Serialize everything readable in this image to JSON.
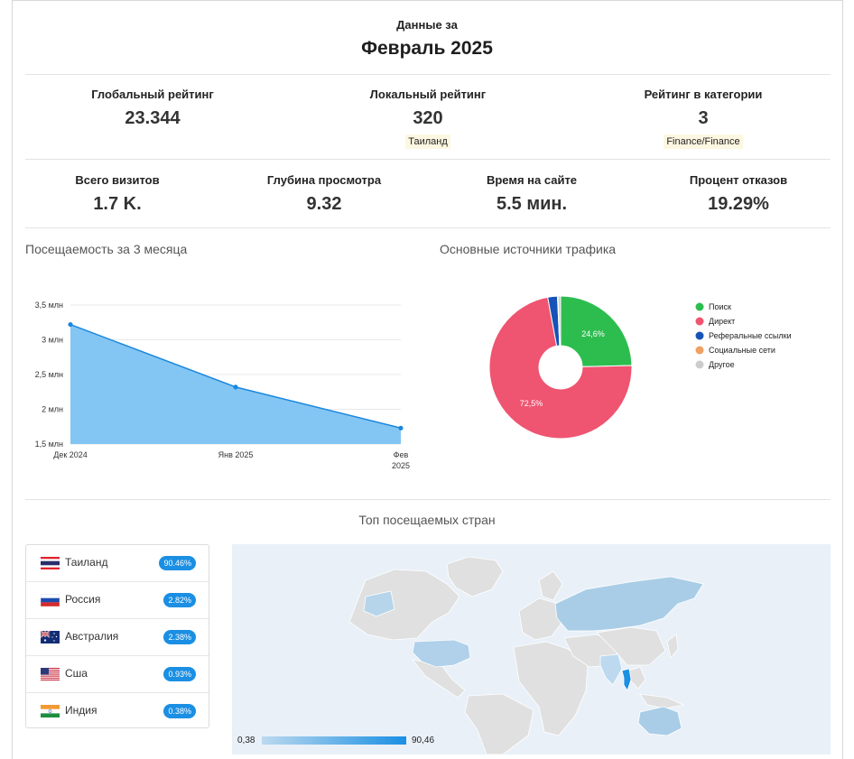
{
  "header": {
    "subtitle": "Данные за",
    "period": "Февраль 2025"
  },
  "ranks": [
    {
      "label": "Глобальный рейтинг",
      "value": "23.344",
      "tag": ""
    },
    {
      "label": "Локальный рейтинг",
      "value": "320",
      "tag": "Таиланд"
    },
    {
      "label": "Рейтинг в категории",
      "value": "3",
      "tag": "Finance/Finance"
    }
  ],
  "metrics": [
    {
      "label": "Всего визитов",
      "value": "1.7 K."
    },
    {
      "label": "Глубина просмотра",
      "value": "9.32"
    },
    {
      "label": "Время на сайте",
      "value": "5.5 мин."
    },
    {
      "label": "Процент отказов",
      "value": "19.29%"
    }
  ],
  "visits_title": "Посещаемость за 3 месяца",
  "traffic_title": "Основные источники трафика",
  "countries_title": "Топ посещаемых стран",
  "chart_data": [
    {
      "type": "area",
      "title": "Посещаемость за 3 месяца",
      "categories": [
        "Дек 2024",
        "Янв 2025",
        "Фев 2025"
      ],
      "values": [
        3.22,
        2.32,
        1.73
      ],
      "yticks": [
        "1,5 млн",
        "2 млн",
        "2,5 млн",
        "3 млн",
        "3,5 млн"
      ],
      "ylim": [
        1.5,
        3.5
      ],
      "grid": true,
      "color": "#7cc3f2",
      "line_color": "#1b87de"
    },
    {
      "type": "pie",
      "title": "Основные источники трафика",
      "slices": [
        {
          "name": "Поиск",
          "value": 24.6,
          "label": "24,6%",
          "color": "#2dbd4f"
        },
        {
          "name": "Директ",
          "value": 72.5,
          "label": "72,5%",
          "color": "#ef5470"
        },
        {
          "name": "Реферальные ссылки",
          "value": 2.2,
          "label": "",
          "color": "#1553b6"
        },
        {
          "name": "Социальные сети",
          "value": 0.1,
          "label": "",
          "color": "#f0a060"
        },
        {
          "name": "Другое",
          "value": 0.6,
          "label": "",
          "color": "#cccccc"
        }
      ],
      "legend": "right"
    }
  ],
  "countries": [
    {
      "name": "Таиланд",
      "value": "90.46%",
      "flag": "flag-thailand"
    },
    {
      "name": "Россия",
      "value": "2.82%",
      "flag": "flag-russia"
    },
    {
      "name": "Австралия",
      "value": "2.38%",
      "flag": "flag-australia"
    },
    {
      "name": "Сша",
      "value": "0.93%",
      "flag": "flag-usa"
    },
    {
      "name": "Индия",
      "value": "0.38%",
      "flag": "flag-india"
    }
  ],
  "map": {
    "scale_min": "0,38",
    "scale_max": "90,46",
    "low_color": "#bcd9ef",
    "high_color": "#1a8fe3",
    "land_color": "#dcdcdc"
  }
}
